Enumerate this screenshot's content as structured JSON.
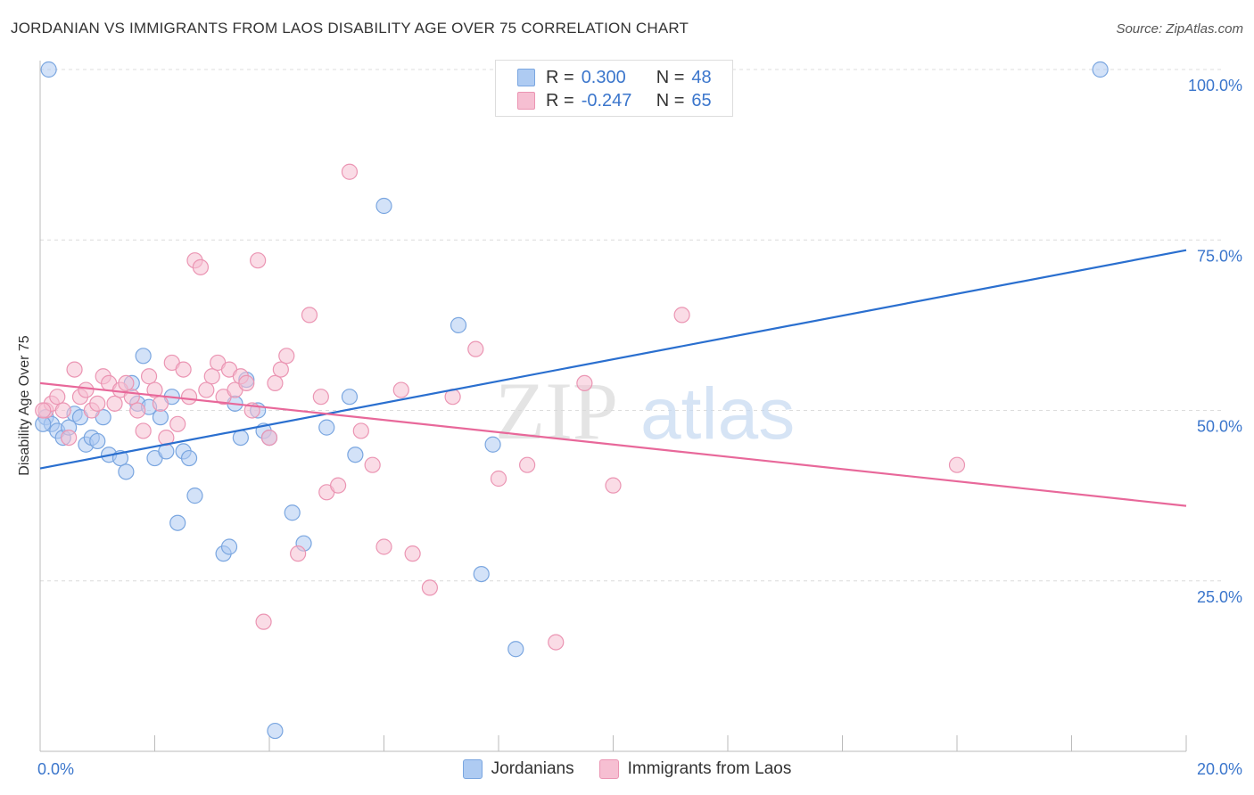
{
  "header": {
    "title": "JORDANIAN VS IMMIGRANTS FROM LAOS DISABILITY AGE OVER 75 CORRELATION CHART",
    "source": "Source: ZipAtlas.com"
  },
  "watermark": {
    "zip": "ZIP",
    "atlas": "atlas"
  },
  "legend_top": [
    {
      "r_label": "R =",
      "r_value": "0.300",
      "n_label": "N =",
      "n_value": "48"
    },
    {
      "r_label": "R =",
      "r_value": "-0.247",
      "n_label": "N =",
      "n_value": "65"
    }
  ],
  "colors": {
    "blue_fill": "#aecbf2",
    "blue_stroke": "#7aa6e0",
    "blue_line": "#2a6fcf",
    "pink_fill": "#f6bfd2",
    "pink_stroke": "#eb95b3",
    "pink_line": "#e8689a",
    "tick_blue": "#3b76cc",
    "grid": "#dcdcdc"
  },
  "chart_data": {
    "type": "scatter",
    "title": "JORDANIAN VS IMMIGRANTS FROM LAOS DISABILITY AGE OVER 75 CORRELATION CHART",
    "xlabel": "",
    "ylabel": "Disability Age Over 75",
    "xlim": [
      0,
      20
    ],
    "ylim": [
      0,
      100
    ],
    "x_ticks": [
      "0.0%",
      "20.0%"
    ],
    "y_ticks": [
      "25.0%",
      "50.0%",
      "75.0%",
      "100.0%"
    ],
    "y_tick_values": [
      25,
      50,
      75,
      100
    ],
    "grid": "horizontal dashed",
    "legend_position": "top-center, bottom",
    "series": [
      {
        "name": "Jordanians",
        "color": "#aecbf2",
        "trend": {
          "x": [
            0,
            20
          ],
          "y": [
            41.5,
            73.5
          ]
        },
        "x": [
          0.1,
          0.2,
          0.3,
          0.4,
          0.5,
          0.6,
          0.7,
          0.8,
          0.9,
          1.0,
          1.1,
          1.2,
          1.4,
          1.5,
          1.6,
          1.7,
          1.8,
          1.9,
          2.0,
          2.1,
          2.2,
          2.3,
          2.4,
          2.5,
          2.6,
          2.7,
          3.2,
          3.3,
          3.4,
          3.5,
          3.6,
          3.8,
          3.9,
          4.0,
          4.1,
          4.4,
          4.6,
          5.0,
          5.4,
          5.5,
          6.0,
          7.3,
          7.7,
          7.9,
          8.3,
          18.5,
          0.15,
          0.05
        ],
        "y": [
          49,
          48,
          47,
          46,
          47.5,
          49.5,
          49,
          45,
          46,
          45.5,
          49,
          43.5,
          43,
          41,
          54,
          51,
          58,
          50.5,
          43,
          49,
          44,
          52,
          33.5,
          44,
          43,
          37.5,
          29,
          30,
          51,
          46,
          54.5,
          50,
          47,
          46,
          3,
          35,
          30.5,
          47.5,
          52,
          43.5,
          80,
          62.5,
          26,
          45,
          15,
          100,
          100,
          48
        ]
      },
      {
        "name": "Immigrants from Laos",
        "color": "#f6bfd2",
        "trend": {
          "x": [
            0,
            20
          ],
          "y": [
            54,
            36
          ]
        },
        "x": [
          0.1,
          0.2,
          0.3,
          0.4,
          0.5,
          0.6,
          0.7,
          0.8,
          0.9,
          1.0,
          1.1,
          1.2,
          1.3,
          1.4,
          1.5,
          1.6,
          1.7,
          1.8,
          1.9,
          2.0,
          2.1,
          2.2,
          2.3,
          2.4,
          2.5,
          2.6,
          2.7,
          2.8,
          2.9,
          3.0,
          3.1,
          3.2,
          3.3,
          3.4,
          3.5,
          3.6,
          3.7,
          3.8,
          3.9,
          4.0,
          4.1,
          4.2,
          4.3,
          4.5,
          4.7,
          4.9,
          5.0,
          5.2,
          5.4,
          5.6,
          5.8,
          6.0,
          6.3,
          6.5,
          6.8,
          7.2,
          7.6,
          8.0,
          8.5,
          9.0,
          9.5,
          10.0,
          11.2,
          16.0,
          0.05
        ],
        "y": [
          50,
          51,
          52,
          50,
          46,
          56,
          52,
          53,
          50,
          51,
          55,
          54,
          51,
          53,
          54,
          52,
          50,
          47,
          55,
          53,
          51,
          46,
          57,
          48,
          56,
          52,
          72,
          71,
          53,
          55,
          57,
          52,
          56,
          53,
          55,
          54,
          50,
          72,
          19,
          46,
          54,
          56,
          58,
          29,
          64,
          52,
          38,
          39,
          85,
          47,
          42,
          30,
          53,
          29,
          24,
          52,
          59,
          40,
          42,
          16,
          54,
          39,
          64,
          42,
          50
        ]
      }
    ]
  },
  "bottom_legend": [
    {
      "label": "Jordanians"
    },
    {
      "label": "Immigrants from Laos"
    }
  ]
}
